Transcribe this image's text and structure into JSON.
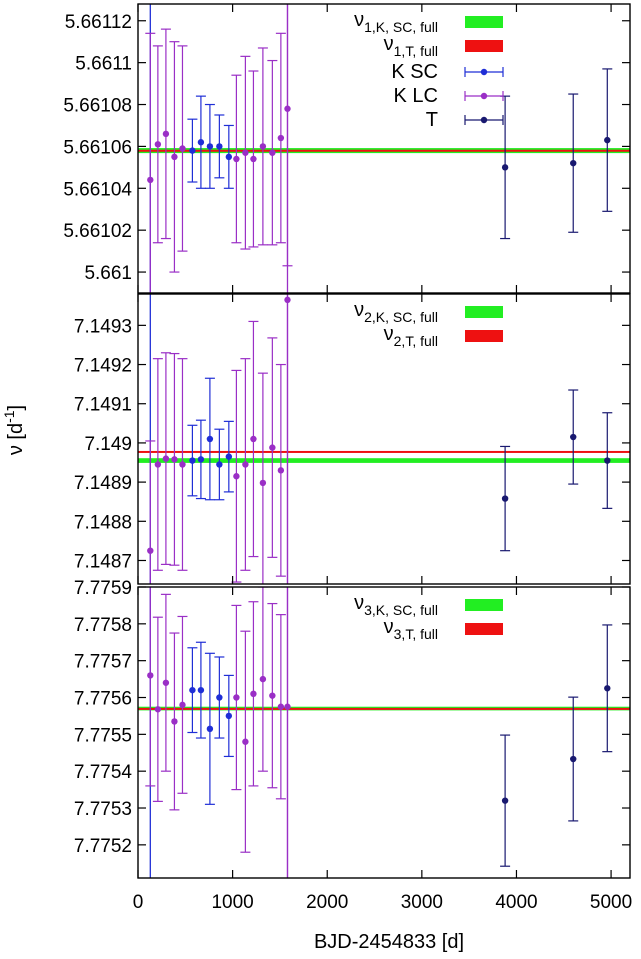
{
  "chart_data": {
    "type": "scatter",
    "xlabel": "BJD-2454833 [d]",
    "ylabel": "ν [d",
    "ylabel_sup": "-1",
    "ylabel_close": "]",
    "xlim": [
      0,
      5200
    ],
    "xticks": [
      0,
      1000,
      2000,
      3000,
      4000,
      5000
    ],
    "vlines": [
      130,
      1580
    ],
    "colors": {
      "k_sc": "#1f2ed6",
      "k_lc": "#9a2fc6",
      "t": "#191970",
      "band_green": "#22ee22",
      "band_red": "#ee1111"
    },
    "legend_symbols": {
      "k_sc": "K SC",
      "k_lc": "K LC",
      "t": "T"
    },
    "panels": [
      {
        "ylim": [
          5.66099,
          5.661128
        ],
        "yticks": [
          5.661,
          5.66102,
          5.66104,
          5.66106,
          5.66108,
          5.6611,
          5.66112
        ],
        "ytick_labels": [
          "5.661",
          "5.66102",
          "5.66104",
          "5.66106",
          "5.66108",
          "5.6611",
          "5.66112"
        ],
        "bands": [
          {
            "sym": "ν",
            "sub": "1,K, SC, full",
            "color": "band_green",
            "center": 5.661058,
            "half": 1.2e-06
          },
          {
            "sym": "ν",
            "sub": "1,T, full",
            "color": "band_red",
            "center": 5.661058,
            "half": 4e-07
          }
        ],
        "series": [
          {
            "key": "k_lc",
            "name": "K LC",
            "points": [
              {
                "x": 130,
                "y": 5.661044,
                "err": 7e-05
              },
              {
                "x": 210,
                "y": 5.661061,
                "err": 4.7e-05
              },
              {
                "x": 295,
                "y": 5.661066,
                "err": 5e-05
              },
              {
                "x": 385,
                "y": 5.661055,
                "err": 5.5e-05
              },
              {
                "x": 470,
                "y": 5.661059,
                "err": 4.9e-05
              },
              {
                "x": 1040,
                "y": 5.661054,
                "err": 4e-05
              },
              {
                "x": 1135,
                "y": 5.661057,
                "err": 4.6e-05
              },
              {
                "x": 1220,
                "y": 5.661054,
                "err": 4.2e-05
              },
              {
                "x": 1320,
                "y": 5.66106,
                "err": 4.7e-05
              },
              {
                "x": 1420,
                "y": 5.661057,
                "err": 4.4e-05
              },
              {
                "x": 1510,
                "y": 5.661064,
                "err": 5e-05
              },
              {
                "x": 1580,
                "y": 5.661078,
                "err": 7.5e-05
              }
            ]
          },
          {
            "key": "k_sc",
            "name": "K SC",
            "points": [
              {
                "x": 575,
                "y": 5.661058,
                "err": 1.5e-05
              },
              {
                "x": 665,
                "y": 5.661062,
                "err": 2.2e-05
              },
              {
                "x": 760,
                "y": 5.66106,
                "err": 2e-05
              },
              {
                "x": 860,
                "y": 5.66106,
                "err": 1.5e-05
              },
              {
                "x": 960,
                "y": 5.661055,
                "err": 1.5e-05
              }
            ]
          },
          {
            "key": "t",
            "name": "T",
            "points": [
              {
                "x": 3880,
                "y": 5.66105,
                "err": 3.4e-05
              },
              {
                "x": 4600,
                "y": 5.661052,
                "err": 3.3e-05
              },
              {
                "x": 4960,
                "y": 5.661063,
                "err": 3.4e-05
              }
            ]
          }
        ]
      },
      {
        "ylim": [
          5.66099,
          5.661128
        ],
        "yticks": [
          5.661,
          5.66102,
          5.66104,
          5.66106,
          5.66108,
          5.6611,
          5.66112
        ],
        "ytick_labels": [
          "5.661",
          "5.66102",
          "5.66104",
          "5.66106",
          "5.66108",
          "5.6611",
          "5.66112"
        ],
        "bands": [],
        "series": []
      },
      {
        "ylim": [
          7.14864,
          7.14938
        ],
        "yticks": [
          7.1487,
          7.1488,
          7.1489,
          7.149,
          7.1491,
          7.1492,
          7.1493
        ],
        "ytick_labels": [
          "7.1487",
          "7.1488",
          "7.1489",
          "7.149",
          "7.1491",
          "7.1492",
          "7.1493"
        ],
        "bands": [
          {
            "sym": "ν",
            "sub": "2,K, SC, full",
            "color": "band_green",
            "center": 7.148955,
            "half": 6e-06
          },
          {
            "sym": "ν",
            "sub": "2,T, full",
            "color": "band_red",
            "center": 7.148977,
            "half": 2.5e-06
          }
        ],
        "series": [
          {
            "key": "k_lc",
            "name": "K LC",
            "points": [
              {
                "x": 130,
                "y": 7.148725,
                "err": 0.00028
              },
              {
                "x": 210,
                "y": 7.148945,
                "err": 0.00027
              },
              {
                "x": 295,
                "y": 7.14896,
                "err": 0.00027
              },
              {
                "x": 385,
                "y": 7.148958,
                "err": 0.00027
              },
              {
                "x": 470,
                "y": 7.148945,
                "err": 0.00027
              },
              {
                "x": 1040,
                "y": 7.148915,
                "err": 0.00027
              },
              {
                "x": 1135,
                "y": 7.148945,
                "err": 0.00027
              },
              {
                "x": 1220,
                "y": 7.14901,
                "err": 0.0003
              },
              {
                "x": 1320,
                "y": 7.148898,
                "err": 0.00028
              },
              {
                "x": 1420,
                "y": 7.148988,
                "err": 0.00028
              },
              {
                "x": 1510,
                "y": 7.14893,
                "err": 0.00027
              },
              {
                "x": 1580,
                "y": 7.149365,
                "err": 0.0008
              }
            ]
          },
          {
            "key": "k_sc",
            "name": "K SC",
            "points": [
              {
                "x": 575,
                "y": 7.148955,
                "err": 9e-05
              },
              {
                "x": 665,
                "y": 7.148958,
                "err": 0.0001
              },
              {
                "x": 760,
                "y": 7.14901,
                "err": 0.000155
              },
              {
                "x": 860,
                "y": 7.148945,
                "err": 9e-05
              },
              {
                "x": 960,
                "y": 7.148965,
                "err": 9e-05
              }
            ]
          },
          {
            "key": "t",
            "name": "T",
            "points": [
              {
                "x": 3880,
                "y": 7.148858,
                "err": 0.000133
              },
              {
                "x": 4600,
                "y": 7.149015,
                "err": 0.00012
              },
              {
                "x": 4960,
                "y": 7.148955,
                "err": 0.000122
              }
            ]
          }
        ]
      },
      {
        "ylim": [
          7.77511,
          7.7759
        ],
        "yticks": [
          7.7752,
          7.7753,
          7.7754,
          7.7755,
          7.7756,
          7.7757,
          7.7758,
          7.7759
        ],
        "ytick_labels": [
          "7.7752",
          "7.7753",
          "7.7754",
          "7.7755",
          "7.7756",
          "7.7757",
          "7.7758",
          "7.7759"
        ],
        "bands": [
          {
            "sym": "ν",
            "sub": "3,K, SC, full",
            "color": "band_green",
            "center": 7.77557,
            "half": 5e-06
          },
          {
            "sym": "ν",
            "sub": "3,T, full",
            "color": "band_red",
            "center": 7.77557,
            "half": 1.8e-06
          }
        ],
        "series": [
          {
            "key": "k_lc",
            "name": "K LC",
            "points": [
              {
                "x": 130,
                "y": 7.77566,
                "err": 0.0003
              },
              {
                "x": 210,
                "y": 7.775568,
                "err": 0.00025
              },
              {
                "x": 295,
                "y": 7.77564,
                "err": 0.00024
              },
              {
                "x": 385,
                "y": 7.775535,
                "err": 0.00024
              },
              {
                "x": 470,
                "y": 7.77558,
                "err": 0.00024
              },
              {
                "x": 1040,
                "y": 7.7756,
                "err": 0.00025
              },
              {
                "x": 1135,
                "y": 7.77548,
                "err": 0.0003
              },
              {
                "x": 1220,
                "y": 7.77561,
                "err": 0.00025
              },
              {
                "x": 1320,
                "y": 7.77565,
                "err": 0.00025
              },
              {
                "x": 1420,
                "y": 7.775605,
                "err": 0.00025
              },
              {
                "x": 1510,
                "y": 7.775575,
                "err": 0.00025
              },
              {
                "x": 1580,
                "y": 7.775575,
                "err": 0.0005
              }
            ]
          },
          {
            "key": "k_sc",
            "name": "K SC",
            "points": [
              {
                "x": 575,
                "y": 7.77562,
                "err": 0.000115
              },
              {
                "x": 665,
                "y": 7.77562,
                "err": 0.00013
              },
              {
                "x": 760,
                "y": 7.775515,
                "err": 0.000205
              },
              {
                "x": 860,
                "y": 7.7756,
                "err": 0.00011
              },
              {
                "x": 960,
                "y": 7.77555,
                "err": 0.00011
              }
            ]
          },
          {
            "key": "t",
            "name": "T",
            "points": [
              {
                "x": 3880,
                "y": 7.77532,
                "err": 0.000178
              },
              {
                "x": 4600,
                "y": 7.775433,
                "err": 0.000168
              },
              {
                "x": 4960,
                "y": 7.775625,
                "err": 0.000172
              }
            ]
          }
        ]
      }
    ]
  }
}
